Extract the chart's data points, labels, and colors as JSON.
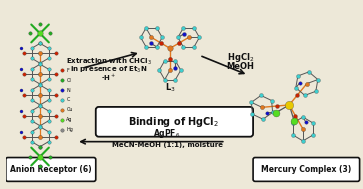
{
  "bg_color": "#ede8d8",
  "fig_bg": "#ede8d8",
  "arrow_color": "#111111",
  "box_color": "#111111",
  "text_color": "#111111",
  "center_box_text": "Binding of HgCl$_2$",
  "top_left_line1": "Extraction with CHCl$_3$",
  "top_left_line2": "in presence of Et$_3$N",
  "top_left_line3": "-H$^+$",
  "top_right_line1": "HgCl$_2$",
  "top_right_line2": "MeOH",
  "bottom_line1": "AgPF$_6$",
  "bottom_line2": "MeCN-MeOH (1:1), moisture",
  "label_L3": "L$_3$",
  "label_anion": "Anion Receptor (6)",
  "label_mercury": "Mercury Complex (3)",
  "teal": "#3ECFCF",
  "orange": "#E07820",
  "red": "#CC2200",
  "blue": "#1010CC",
  "green": "#22AA22",
  "yellow": "#E8C800",
  "lime": "#55DD22",
  "gray": "#888888",
  "darkbrown": "#8B3A00",
  "purple": "#8800AA"
}
